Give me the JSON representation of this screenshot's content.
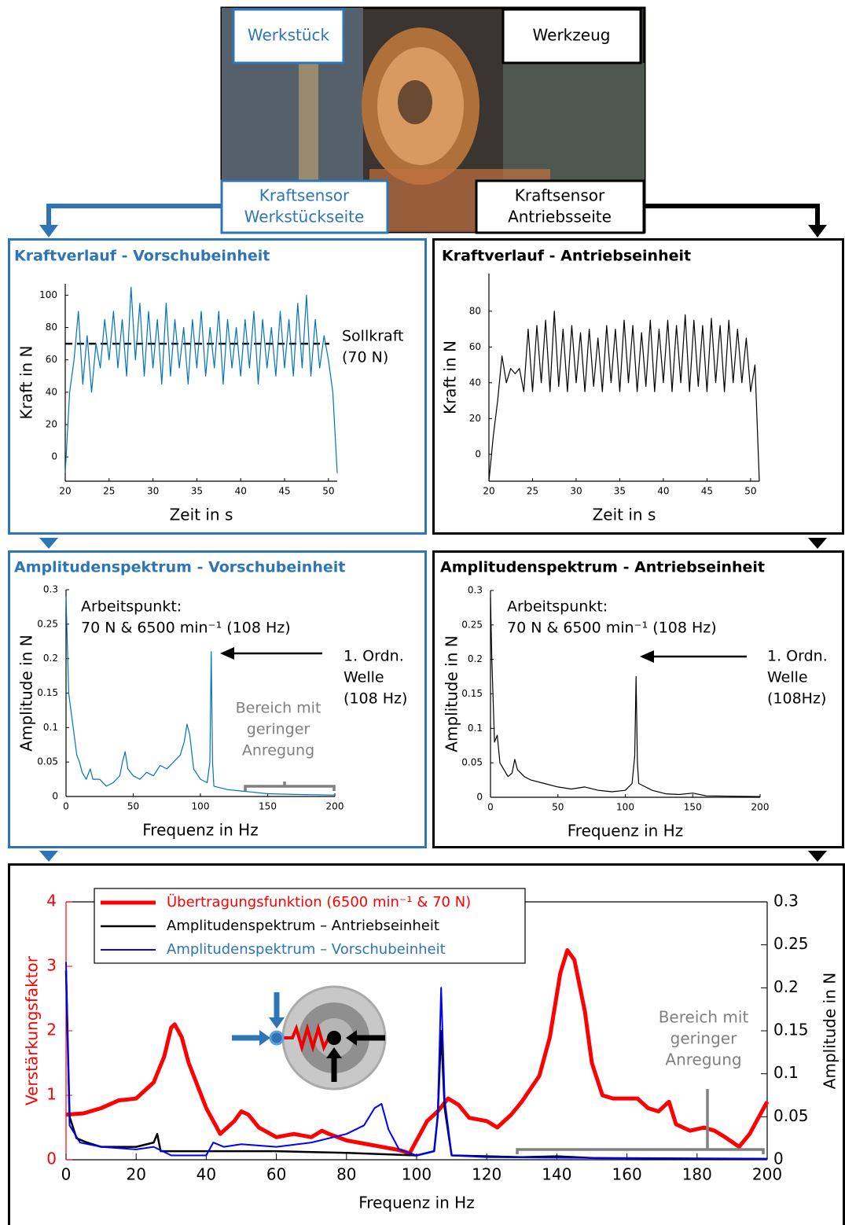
{
  "photo": {
    "labels": [
      "Werkstück",
      "Werkzeug"
    ]
  },
  "sensors": [
    {
      "lines": [
        "Kraftsensor",
        "Werkstückseite"
      ]
    },
    {
      "lines": [
        "Kraftsensor",
        "Antriebsseite"
      ]
    }
  ],
  "chart_data": [
    {
      "type": "line",
      "title": "Kraftverlauf - Vorschubeinheit",
      "xlabel": "Zeit in s",
      "ylabel": "Kraft in N",
      "xlim": [
        20,
        51
      ],
      "ylim": [
        -15,
        107
      ],
      "xticks": [
        20,
        25,
        30,
        35,
        40,
        45,
        50
      ],
      "yticks": [
        0,
        20,
        40,
        60,
        80,
        100
      ],
      "series": [
        {
          "color": "#0072bd",
          "x": [
            20,
            20.5,
            21,
            21.5,
            22,
            22.5,
            23,
            23.5,
            24,
            24.5,
            25,
            25.5,
            26,
            26.5,
            27,
            27.5,
            28,
            28.5,
            29,
            29.5,
            30,
            30.5,
            31,
            31.5,
            32,
            32.5,
            33,
            33.5,
            34,
            34.5,
            35,
            35.5,
            36,
            36.5,
            37,
            37.5,
            38,
            38.5,
            39,
            39.5,
            40,
            40.5,
            41,
            41.5,
            42,
            42.5,
            43,
            43.5,
            44,
            44.5,
            45,
            45.5,
            46,
            46.5,
            47,
            47.5,
            48,
            48.5,
            49,
            49.5,
            50,
            50.5,
            51
          ],
          "values": [
            -10,
            40,
            60,
            90,
            45,
            75,
            40,
            70,
            55,
            85,
            60,
            90,
            55,
            85,
            50,
            105,
            60,
            95,
            50,
            90,
            55,
            85,
            45,
            95,
            50,
            85,
            55,
            80,
            45,
            85,
            55,
            90,
            50,
            80,
            55,
            90,
            45,
            85,
            55,
            80,
            50,
            85,
            55,
            90,
            45,
            85,
            55,
            80,
            50,
            90,
            55,
            85,
            50,
            95,
            55,
            100,
            50,
            85,
            55,
            75,
            60,
            40,
            -10
          ]
        }
      ],
      "reference": {
        "value": 70,
        "lines": [
          "Sollkraft",
          "(70 N)"
        ]
      }
    },
    {
      "type": "line",
      "title": "Kraftverlauf - Antriebseinheit",
      "xlabel": "Zeit in s",
      "ylabel": "Kraft in N",
      "xlim": [
        20,
        51
      ],
      "ylim": [
        -15,
        101
      ],
      "xticks": [
        20,
        25,
        30,
        35,
        40,
        45,
        50
      ],
      "yticks": [
        0,
        20,
        40,
        60,
        80
      ],
      "series": [
        {
          "color": "#000000",
          "x": [
            20,
            20.5,
            21,
            21.5,
            22,
            22.5,
            23,
            23.5,
            24,
            24.5,
            25,
            25.5,
            26,
            26.5,
            27,
            27.5,
            28,
            28.5,
            29,
            29.5,
            30,
            30.5,
            31,
            31.5,
            32,
            32.5,
            33,
            33.5,
            34,
            34.5,
            35,
            35.5,
            36,
            36.5,
            37,
            37.5,
            38,
            38.5,
            39,
            39.5,
            40,
            40.5,
            41,
            41.5,
            42,
            42.5,
            43,
            43.5,
            44,
            44.5,
            45,
            45.5,
            46,
            46.5,
            47,
            47.5,
            48,
            48.5,
            49,
            49.5,
            50,
            50.5,
            51
          ],
          "values": [
            -15,
            10,
            30,
            55,
            40,
            48,
            45,
            48,
            35,
            70,
            35,
            72,
            40,
            75,
            35,
            80,
            38,
            70,
            35,
            72,
            40,
            68,
            35,
            70,
            38,
            65,
            35,
            72,
            40,
            70,
            35,
            75,
            40,
            72,
            35,
            68,
            38,
            75,
            35,
            70,
            40,
            75,
            35,
            72,
            40,
            78,
            35,
            75,
            38,
            72,
            35,
            76,
            40,
            72,
            35,
            75,
            40,
            70,
            40,
            65,
            35,
            50,
            -15
          ]
        }
      ]
    },
    {
      "type": "line",
      "title": "Amplitudenspektrum - Vorschubeinheit",
      "xlabel": "Frequenz in Hz",
      "ylabel": "Amplitude in N",
      "xlim": [
        0,
        200
      ],
      "ylim": [
        0,
        0.3
      ],
      "xticks": [
        0,
        50,
        100,
        150,
        200
      ],
      "yticks": [
        0,
        0.05,
        0.1,
        0.15,
        0.2,
        0.25,
        0.3
      ],
      "series": [
        {
          "color": "#0072bd",
          "x": [
            0,
            2,
            4,
            6,
            8,
            10,
            12,
            15,
            18,
            20,
            25,
            30,
            35,
            40,
            42,
            44,
            46,
            50,
            55,
            60,
            65,
            70,
            75,
            80,
            85,
            88,
            90,
            92,
            95,
            100,
            105,
            107,
            108,
            109,
            110,
            120,
            130,
            140,
            150,
            170,
            200
          ],
          "values": [
            0.29,
            0.15,
            0.12,
            0.09,
            0.06,
            0.05,
            0.035,
            0.025,
            0.04,
            0.025,
            0.025,
            0.015,
            0.02,
            0.03,
            0.05,
            0.065,
            0.04,
            0.03,
            0.025,
            0.035,
            0.03,
            0.045,
            0.04,
            0.05,
            0.06,
            0.08,
            0.105,
            0.09,
            0.04,
            0.025,
            0.02,
            0.05,
            0.21,
            0.05,
            0.015,
            0.01,
            0.008,
            0.006,
            0.004,
            0.003,
            0.002
          ]
        }
      ],
      "annotations": [
        {
          "lines": [
            "Arbeitspunkt:",
            "70 N & 6500 min⁻¹ (108 Hz)"
          ]
        },
        {
          "lines": [
            "1. Ordn.",
            "Welle",
            "(108 Hz)"
          ]
        },
        {
          "lines": [
            "Bereich mit",
            "geringer",
            "Anregung"
          ]
        }
      ]
    },
    {
      "type": "line",
      "title": "Amplitudenspektrum - Antriebseinheit",
      "xlabel": "Frequenz in Hz",
      "ylabel": "Amplitude in N",
      "xlim": [
        0,
        200
      ],
      "ylim": [
        0,
        0.3
      ],
      "xticks": [
        0,
        50,
        100,
        150,
        200
      ],
      "yticks": [
        0,
        0.05,
        0.1,
        0.15,
        0.2,
        0.25,
        0.3
      ],
      "series": [
        {
          "color": "#000000",
          "x": [
            0,
            1,
            3,
            5,
            7,
            10,
            13,
            16,
            18,
            20,
            25,
            30,
            40,
            50,
            60,
            70,
            80,
            90,
            100,
            105,
            107,
            108,
            109,
            110,
            120,
            130,
            140,
            150,
            160,
            200
          ],
          "values": [
            0.29,
            0.2,
            0.08,
            0.09,
            0.05,
            0.04,
            0.03,
            0.035,
            0.055,
            0.04,
            0.03,
            0.025,
            0.02,
            0.015,
            0.012,
            0.015,
            0.01,
            0.008,
            0.01,
            0.02,
            0.06,
            0.175,
            0.05,
            0.02,
            0.01,
            0.005,
            0.004,
            0.006,
            0.002,
            0.001
          ]
        }
      ],
      "annotations": [
        {
          "lines": [
            "Arbeitspunkt:",
            "70 N & 6500 min⁻¹ (108 Hz)"
          ]
        },
        {
          "lines": [
            "1. Ordn.",
            "Welle",
            "(108Hz)"
          ]
        }
      ]
    },
    {
      "type": "line",
      "xlabel": "Frequenz in Hz",
      "ylabel": "Verstärkungsfaktor",
      "y2label": "Amplitude in N",
      "xlim": [
        0,
        200
      ],
      "ylim": [
        0,
        4
      ],
      "y2lim": [
        0,
        0.3
      ],
      "xticks": [
        0,
        20,
        40,
        60,
        80,
        100,
        120,
        140,
        160,
        180,
        200
      ],
      "yticks": [
        0,
        1,
        2,
        3,
        4
      ],
      "y2ticks": [
        0,
        0.05,
        0.1,
        0.15,
        0.2,
        0.25,
        0.3
      ],
      "legend": "upper left",
      "series": [
        {
          "name": "Übertragungsfunktion (6500 min⁻¹ & 70 N)",
          "color": "#ff0000",
          "width": 5,
          "x": [
            0,
            5,
            10,
            15,
            20,
            25,
            28,
            30,
            31,
            33,
            35,
            40,
            44,
            48,
            50,
            52,
            55,
            60,
            65,
            70,
            73,
            75,
            80,
            85,
            90,
            95,
            98,
            100,
            103,
            106,
            109,
            112,
            115,
            120,
            123,
            127,
            130,
            135,
            138,
            141,
            143,
            145,
            148,
            150,
            153,
            156,
            160,
            163,
            166,
            169,
            172,
            174,
            178,
            182,
            185,
            188,
            192,
            195,
            197,
            200
          ],
          "values": [
            0.7,
            0.72,
            0.8,
            0.92,
            0.95,
            1.2,
            1.6,
            2.05,
            2.1,
            1.9,
            1.5,
            0.8,
            0.4,
            0.6,
            0.75,
            0.7,
            0.5,
            0.35,
            0.4,
            0.35,
            0.45,
            0.4,
            0.3,
            0.25,
            0.2,
            0.15,
            0.1,
            0.3,
            0.6,
            0.75,
            0.95,
            0.85,
            0.65,
            0.6,
            0.5,
            0.7,
            0.9,
            1.3,
            1.9,
            2.9,
            3.25,
            3.1,
            2.3,
            1.5,
            1.0,
            0.95,
            0.95,
            0.95,
            0.8,
            0.75,
            0.9,
            0.55,
            0.45,
            0.5,
            0.45,
            0.35,
            0.2,
            0.4,
            0.6,
            0.9
          ]
        },
        {
          "name": "Amplitudenspektrum – Antriebseinheit",
          "color": "#000000",
          "width": 2.5,
          "axis": "y2",
          "x": [
            0,
            1,
            3,
            6,
            10,
            20,
            25,
            26,
            27,
            40,
            60,
            80,
            100,
            105,
            106,
            107,
            108,
            110,
            130,
            140,
            150,
            200
          ],
          "values": [
            0.22,
            0.05,
            0.025,
            0.02,
            0.015,
            0.015,
            0.02,
            0.03,
            0.01,
            0.01,
            0.01,
            0.008,
            0.005,
            0.01,
            0.05,
            0.15,
            0.06,
            0.005,
            0.003,
            0.004,
            0.002,
            0.001
          ]
        },
        {
          "name": "Amplitudenspektrum – Vorschubeinheit",
          "color": "#0000ff",
          "width": 2,
          "axis": "y2",
          "x": [
            0,
            1,
            4,
            10,
            20,
            25,
            30,
            40,
            42,
            45,
            50,
            60,
            70,
            80,
            85,
            88,
            90,
            92,
            95,
            100,
            105,
            106,
            107,
            108,
            110,
            120,
            150,
            200
          ],
          "values": [
            0.23,
            0.04,
            0.02,
            0.015,
            0.012,
            0.015,
            0.005,
            0.005,
            0.02,
            0.015,
            0.018,
            0.015,
            0.02,
            0.03,
            0.04,
            0.06,
            0.065,
            0.035,
            0.012,
            0.005,
            0.01,
            0.05,
            0.2,
            0.07,
            0.005,
            0.003,
            0.002,
            0.001
          ]
        }
      ],
      "annotations": [
        {
          "lines": [
            "Bereich mit",
            "geringer",
            "Anregung"
          ]
        }
      ]
    }
  ]
}
